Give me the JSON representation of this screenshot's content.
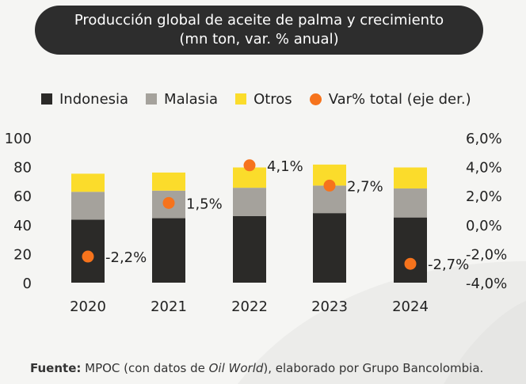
{
  "title": {
    "line1": "Producción global de aceite de palma y crecimiento",
    "line2": "(mn ton, var. % anual)"
  },
  "legend": [
    {
      "label": "Indonesia",
      "color": "#2b2a28",
      "shape": "square"
    },
    {
      "label": "Malasia",
      "color": "#a5a29c",
      "shape": "square"
    },
    {
      "label": "Otros",
      "color": "#fbdc2b",
      "shape": "square"
    },
    {
      "label": "Var% total (eje der.)",
      "color": "#f6731c",
      "shape": "circle"
    }
  ],
  "footer": {
    "label": "Fuente:",
    "pre": " MPOC (con datos de ",
    "italic": "Oil World",
    "post": "), elaborado por Grupo Bancolombia."
  },
  "chart_data": {
    "type": "bar",
    "stacked": true,
    "categories": [
      "2020",
      "2021",
      "2022",
      "2023",
      "2024"
    ],
    "series": [
      {
        "name": "Indonesia",
        "values": [
          43.5,
          44.5,
          46,
          48,
          45
        ],
        "color": "#2b2a28"
      },
      {
        "name": "Malasia",
        "values": [
          19.2,
          19,
          19.5,
          19,
          20
        ],
        "color": "#a5a29c"
      },
      {
        "name": "Otros",
        "values": [
          12.5,
          12.5,
          14,
          14.5,
          14.5
        ],
        "color": "#fbdc2b"
      }
    ],
    "line_series": {
      "name": "Var% total (eje der.)",
      "axis": "right",
      "values": [
        -2.2,
        1.5,
        4.1,
        2.7,
        -2.7
      ],
      "labels": [
        "-2,2%",
        "1,5%",
        "4,1%",
        "2,7%",
        "-2,7%"
      ],
      "color": "#f6731c"
    },
    "left_axis": {
      "ylim": [
        0,
        100
      ],
      "ticks": [
        "0",
        "20",
        "40",
        "60",
        "80",
        "100"
      ]
    },
    "right_axis": {
      "ylim": [
        -4,
        6
      ],
      "ticks": [
        "-4,0%",
        "-2,0%",
        "0,0%",
        "2,0%",
        "4,0%",
        "6,0%"
      ]
    },
    "grid": false,
    "legend_position": "top"
  }
}
